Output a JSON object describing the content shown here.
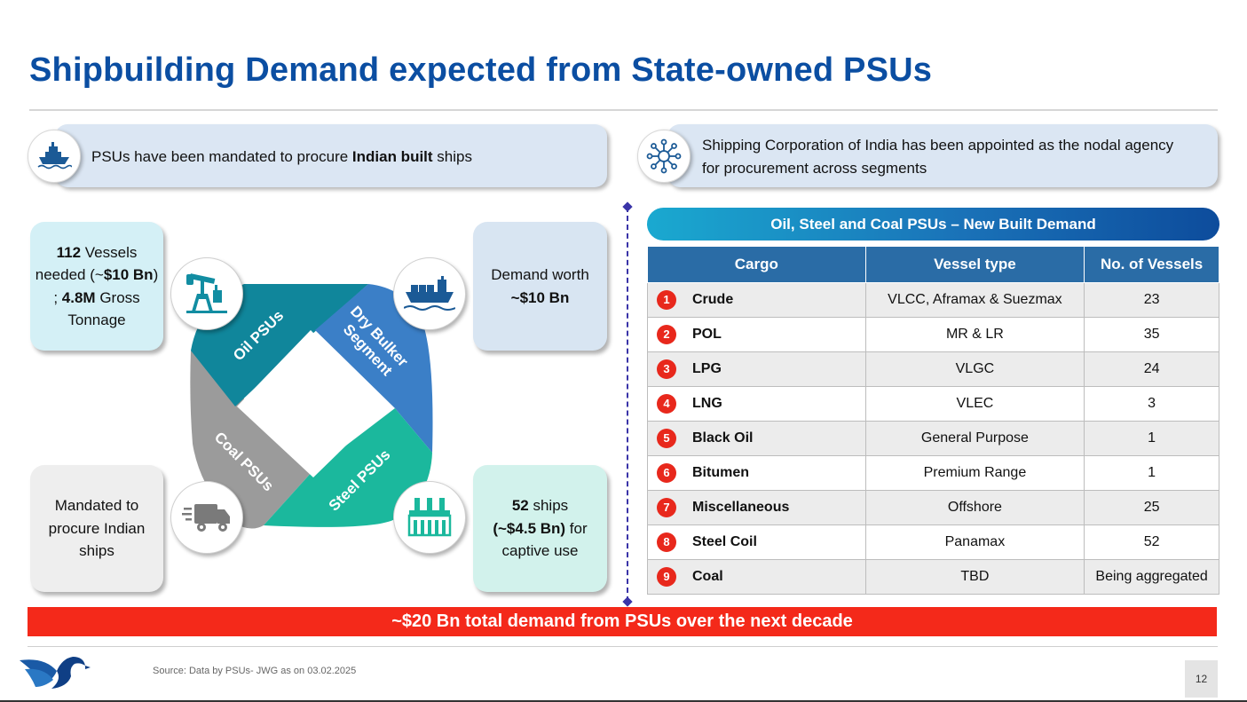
{
  "title": "Shipbuilding Demand expected from State-owned PSUs",
  "left_banner": {
    "text_prefix": "PSUs have been mandated to procure ",
    "text_bold": "Indian built",
    "text_suffix": " ships",
    "icon": "ship-icon"
  },
  "right_banner": {
    "line1": "Shipping Corporation of India has been appointed as the nodal agency",
    "line2": "for procurement across segments",
    "icon": "network-icon"
  },
  "boxes": {
    "oil": {
      "b1": "112",
      "t1": " Vessels needed (~",
      "b2": "$10 Bn",
      "t2": ") ; ",
      "b3": "4.8M",
      "t3": " Gross Tonnage"
    },
    "dry": {
      "t1": "Demand worth",
      "b1": "~$10 Bn"
    },
    "coal": {
      "t1": "Mandated to procure Indian ships"
    },
    "steel": {
      "b1": "52",
      "t1": " ships",
      "b2": "(~$4.5 Bn)",
      "t2": " for captive use"
    }
  },
  "segments": {
    "oil": "Oil PSUs",
    "dry": "Dry Bulker Segment",
    "dry_line1": "Dry Bulker",
    "dry_line2": "Segment",
    "coal": "Coal PSUs",
    "steel": "Steel PSUs"
  },
  "colors": {
    "oil": "#10869b",
    "dry": "#3b7fc7",
    "coal": "#9b9b9b",
    "steel": "#1bb89d"
  },
  "table": {
    "title": "Oil, Steel and Coal PSUs – New Built Demand",
    "headers": [
      "Cargo",
      "Vessel type",
      "No. of Vessels"
    ],
    "rows": [
      {
        "num": "1",
        "cargo": "Crude",
        "vessel": "VLCC, Aframax & Suezmax",
        "count": "23"
      },
      {
        "num": "2",
        "cargo": "POL",
        "vessel": "MR & LR",
        "count": "35"
      },
      {
        "num": "3",
        "cargo": "LPG",
        "vessel": "VLGC",
        "count": "24"
      },
      {
        "num": "4",
        "cargo": "LNG",
        "vessel": "VLEC",
        "count": "3"
      },
      {
        "num": "5",
        "cargo": "Black Oil",
        "vessel": "General Purpose",
        "count": "1"
      },
      {
        "num": "6",
        "cargo": "Bitumen",
        "vessel": "Premium Range",
        "count": "1"
      },
      {
        "num": "7",
        "cargo": "Miscellaneous",
        "vessel": "Offshore",
        "count": "25"
      },
      {
        "num": "8",
        "cargo": "Steel Coil",
        "vessel": "Panamax",
        "count": "52"
      },
      {
        "num": "9",
        "cargo": "Coal",
        "vessel": "TBD",
        "count": "Being aggregated"
      }
    ]
  },
  "banner_total": "~$20 Bn total demand from PSUs over the next decade",
  "source": "Source: Data by PSUs- JWG as on 03.02.2025",
  "page_number": "12"
}
